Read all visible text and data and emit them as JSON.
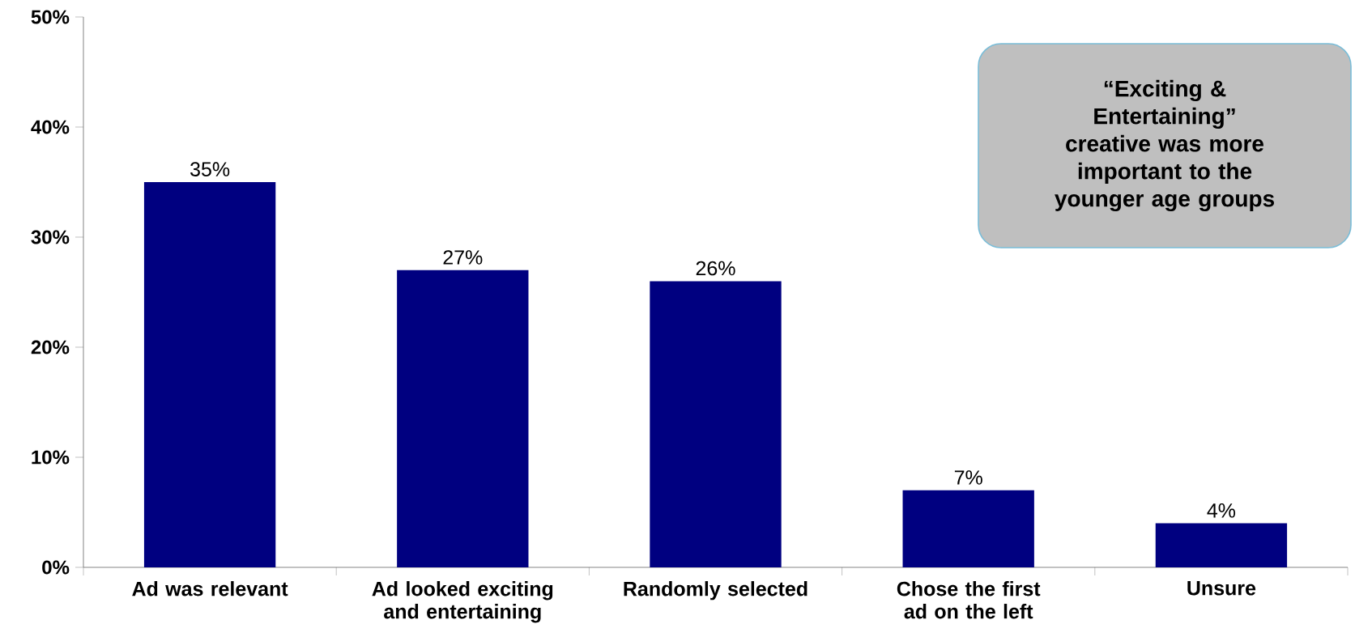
{
  "chart_data": {
    "type": "bar",
    "categories": [
      "Ad was relevant",
      "Ad looked exciting and entertaining",
      "Randomly selected",
      "Chose the first ad on the left",
      "Unsure"
    ],
    "values": [
      35,
      27,
      26,
      7,
      4
    ],
    "value_labels": [
      "35%",
      "27%",
      "26%",
      "7%",
      "4%"
    ],
    "color": "#000080",
    "ylim": [
      0,
      50
    ],
    "yticks": [
      {
        "value": 0,
        "label": "0%"
      },
      {
        "value": 10,
        "label": "10%"
      },
      {
        "value": 20,
        "label": "20%"
      },
      {
        "value": 30,
        "label": "30%"
      },
      {
        "value": 40,
        "label": "40%"
      },
      {
        "value": 50,
        "label": "50%"
      }
    ],
    "annotations": [
      "“Exciting & Entertaining” creative was more important to the younger age groups"
    ]
  }
}
